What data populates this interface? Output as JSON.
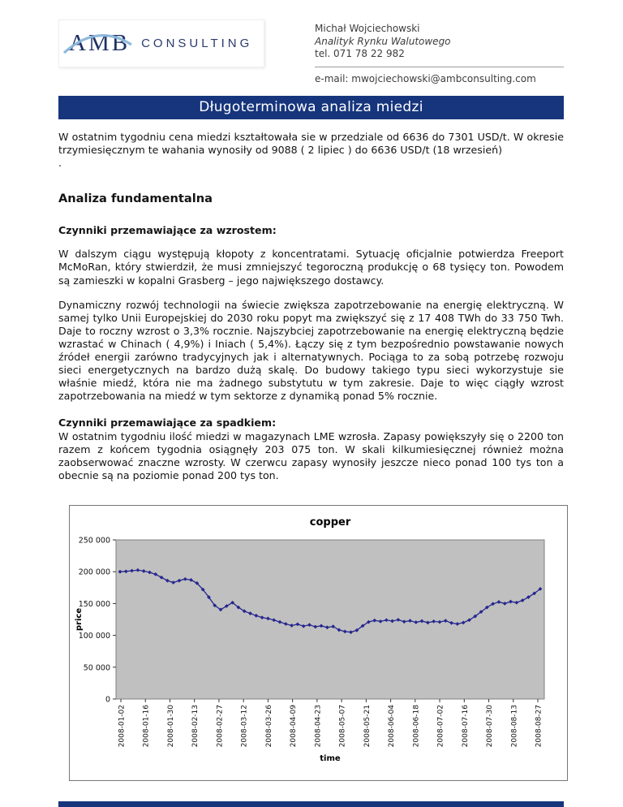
{
  "header": {
    "logo": {
      "amb": "AMB",
      "consulting": "CONSULTING"
    },
    "contact": {
      "name": "Michał Wojciechowski",
      "role": "Analityk Rynku Walutowego",
      "phone": "tel. 071 78 22 982",
      "email": "e-mail: mwojciechowski@ambconsulting.com"
    }
  },
  "banner": {
    "title": "Długoterminowa analiza miedzi"
  },
  "colors": {
    "banner_bg": "#16357c",
    "footer_bg": "#16357c",
    "series": "#26268f",
    "plot_bg": "#c0c0c0"
  },
  "intro": "W ostatnim tygodniu cena miedzi kształtowała sie w przedziale  od 6636 do 7301 USD/t. W okresie trzymiesięcznym te wahania wynosiły od 9088 ( 2 lipiec ) do 6636 USD/t (18 wrzesień)",
  "intro_period": ".",
  "sections": {
    "fundamental_title": "Analiza fundamentalna",
    "growth_heading": "Czynniki przemawiające za wzrostem:",
    "growth_p1": "W dalszym ciągu występują kłopoty z koncentratami. Sytuację oficjalnie potwierdza Freeport McMoRan, który stwierdził, że musi zmniejszyć tegoroczną produkcję o 68 tysięcy ton. Powodem są zamieszki w kopalni Grasberg – jego największego dostawcy.",
    "growth_p2": "Dynamiczny rozwój technologii na świecie zwiększa zapotrzebowanie na energię elektryczną. W samej tylko Unii Europejskiej do 2030 roku popyt ma zwiększyć się z 17 408 TWh do 33 750 Twh. Daje to roczny wzrost o 3,3% rocznie. Najszybciej zapotrzebowanie na energię elektryczną będzie wzrastać w Chinach ( 4,9%) i Iniach ( 5,4%).  Łączy się z tym bezpośrednio powstawanie nowych źródeł energii zarówno tradycyjnych jak i alternatywnych. Pociąga to za sobą potrzebę rozwoju sieci energetycznych na bardzo dużą skalę. Do budowy takiego typu sieci wykorzystuje sie właśnie miedź, która nie ma żadnego substytutu w tym zakresie. Daje to więc ciągły wzrost zapotrzebowania na miedź w tym sektorze z dynamiką ponad 5% rocznie.",
    "decline_heading": "Czynniki przemawiające za spadkiem:",
    "decline_p1": "W ostatnim tygodniu ilość miedzi w magazynach LME wzrosła. Zapasy powiększyły się o 2200 ton razem z końcem tygodnia osiągnęły 203 075 ton. W skali kilkumiesięcznej również można zaobserwować znaczne wzrosty. W czerwcu zapasy wynosiły jeszcze nieco ponad 100 tys ton a obecnie są na poziomie ponad 200 tys ton."
  },
  "chart_data": {
    "type": "line",
    "title": "copper",
    "xlabel": "time",
    "ylabel": "price",
    "ylim": [
      0,
      250000
    ],
    "yticks": [
      0,
      50000,
      100000,
      150000,
      200000,
      250000
    ],
    "ytick_labels": [
      "0",
      "50 000",
      "100 000",
      "150 000",
      "200 000",
      "250 000"
    ],
    "x_tick_labels": [
      "2008-01-02",
      "2008-01-16",
      "2008-01-30",
      "2008-02-13",
      "2008-02-27",
      "2008-03-12",
      "2008-03-26",
      "2008-04-09",
      "2008-04-23",
      "2008-05-07",
      "2008-05-21",
      "2008-06-04",
      "2008-06-18",
      "2008-07-02",
      "2008-07-16",
      "2008-07-30",
      "2008-08-13",
      "2008-08-27"
    ],
    "grid": false,
    "legend": "none",
    "plot_bg": "#c0c0c0",
    "series": [
      {
        "name": "copper price",
        "color": "#26268f",
        "marker": "diamond",
        "values": [
          200000,
          200500,
          201500,
          202500,
          201000,
          199000,
          196000,
          191000,
          186000,
          183000,
          186000,
          188500,
          187000,
          182000,
          172000,
          160000,
          147000,
          140500,
          146000,
          151500,
          144000,
          138000,
          134500,
          131000,
          128000,
          126500,
          124000,
          121000,
          118000,
          115500,
          117500,
          114500,
          116500,
          113500,
          115000,
          112500,
          114000,
          108500,
          106000,
          105000,
          108000,
          115000,
          121000,
          123500,
          122000,
          124000,
          122500,
          124500,
          121500,
          123000,
          120500,
          122500,
          120000,
          122000,
          121000,
          123000,
          119500,
          118000,
          120000,
          124000,
          130000,
          137000,
          144000,
          149500,
          152500,
          150000,
          153000,
          151500,
          155000,
          160000,
          166000,
          173000
        ]
      }
    ]
  }
}
